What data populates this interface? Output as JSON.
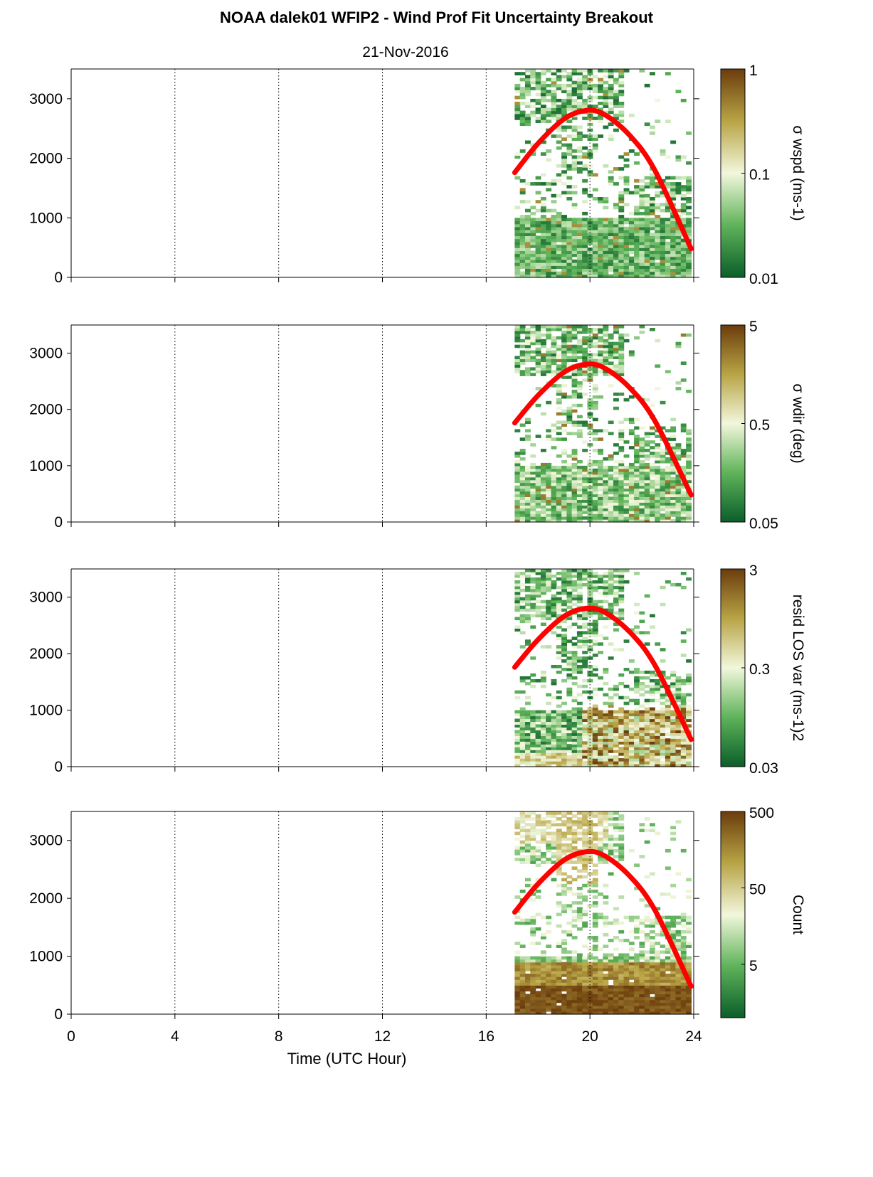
{
  "title": "NOAA dalek01 WFIP2 - Wind Prof Fit Uncertainty Breakout",
  "subtitle": "21-Nov-2016",
  "colors": {
    "low": "#0b5e2a",
    "mid_low": "#5fb35a",
    "mid": "#f2f7dc",
    "mid_high": "#b8a445",
    "high": "#6b3c0c",
    "curve": "#ff0000"
  },
  "chart_data": [
    {
      "type": "heatmap",
      "xlabel": "",
      "ylabel": "",
      "xlim": [
        0,
        24
      ],
      "ylim": [
        0,
        3500
      ],
      "x_ticks": [
        0,
        4,
        8,
        12,
        16,
        20,
        24
      ],
      "y_ticks": [
        0,
        1000,
        2000,
        3000
      ],
      "y_tick_labels": [
        "0",
        "1000",
        "2000",
        "3000"
      ],
      "grid_x": true,
      "data_x_range": [
        17.1,
        23.9
      ],
      "colorbar": {
        "label": "σ wspd (ms-1)",
        "scale": "log",
        "range": [
          0.01,
          1
        ],
        "ticks": [
          0.01,
          0.1,
          1
        ],
        "tick_labels": [
          "0.01",
          "0.1",
          "1"
        ]
      },
      "curve": {
        "x": [
          17.1,
          18,
          19,
          19.8,
          20.5,
          21.5,
          22.5,
          23.9
        ],
        "y": [
          1760,
          2250,
          2660,
          2800,
          2750,
          2400,
          1800,
          480
        ]
      }
    },
    {
      "type": "heatmap",
      "xlabel": "",
      "ylabel": "",
      "xlim": [
        0,
        24
      ],
      "ylim": [
        0,
        3500
      ],
      "x_ticks": [
        0,
        4,
        8,
        12,
        16,
        20,
        24
      ],
      "y_ticks": [
        0,
        1000,
        2000,
        3000
      ],
      "y_tick_labels": [
        "0",
        "1000",
        "2000",
        "3000"
      ],
      "grid_x": true,
      "data_x_range": [
        17.1,
        23.9
      ],
      "colorbar": {
        "label": "σ wdir (deg)",
        "scale": "log",
        "range": [
          0.05,
          5
        ],
        "ticks": [
          0.05,
          0.5,
          5
        ],
        "tick_labels": [
          "0.05",
          "0.5",
          "5"
        ]
      },
      "curve": {
        "x": [
          17.1,
          18,
          19,
          19.8,
          20.5,
          21.5,
          22.5,
          23.9
        ],
        "y": [
          1760,
          2250,
          2660,
          2800,
          2750,
          2400,
          1800,
          480
        ]
      }
    },
    {
      "type": "heatmap",
      "xlabel": "",
      "ylabel": "",
      "xlim": [
        0,
        24
      ],
      "ylim": [
        0,
        3500
      ],
      "x_ticks": [
        0,
        4,
        8,
        12,
        16,
        20,
        24
      ],
      "y_ticks": [
        0,
        1000,
        2000,
        3000
      ],
      "y_tick_labels": [
        "0",
        "1000",
        "2000",
        "3000"
      ],
      "grid_x": true,
      "data_x_range": [
        17.1,
        23.9
      ],
      "colorbar": {
        "label": "resid LOS var (ms-1)2",
        "scale": "log",
        "range": [
          0.03,
          3
        ],
        "ticks": [
          0.03,
          0.3,
          3
        ],
        "tick_labels": [
          "0.03",
          "0.3",
          "3"
        ]
      },
      "curve": {
        "x": [
          17.1,
          18,
          19,
          19.8,
          20.5,
          21.5,
          22.5,
          23.9
        ],
        "y": [
          1760,
          2250,
          2660,
          2800,
          2750,
          2400,
          1800,
          480
        ]
      }
    },
    {
      "type": "heatmap",
      "xlabel": "Time (UTC Hour)",
      "ylabel": "",
      "xlim": [
        0,
        24
      ],
      "ylim": [
        0,
        3500
      ],
      "x_ticks": [
        0,
        4,
        8,
        12,
        16,
        20,
        24
      ],
      "x_tick_labels": [
        "0",
        "4",
        "8",
        "12",
        "16",
        "20",
        "24"
      ],
      "y_ticks": [
        0,
        1000,
        2000,
        3000
      ],
      "y_tick_labels": [
        "0",
        "1000",
        "2000",
        "3000"
      ],
      "grid_x": true,
      "data_x_range": [
        17.1,
        23.9
      ],
      "colorbar": {
        "label": "Count",
        "scale": "log",
        "range": [
          1,
          500
        ],
        "ticks": [
          5,
          50,
          500
        ],
        "tick_labels": [
          "5",
          "50",
          "500"
        ]
      },
      "curve": {
        "x": [
          17.1,
          18,
          19,
          19.8,
          20.5,
          21.5,
          22.5,
          23.9
        ],
        "y": [
          1760,
          2250,
          2660,
          2800,
          2750,
          2400,
          1800,
          480
        ]
      }
    }
  ]
}
